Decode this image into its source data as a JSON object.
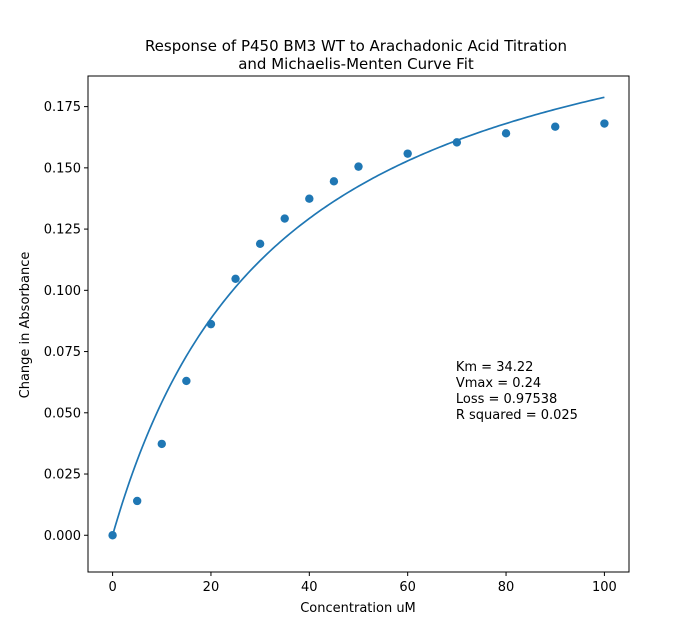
{
  "chart_data": {
    "type": "scatter",
    "title": "Response of P450 BM3 WT to Arachadonic Acid Titration",
    "subtitle": "and Michaelis-Menten Curve Fit",
    "xlabel": "Concentration uM",
    "ylabel": "Change in Absorbance",
    "xlim": [
      -5,
      105
    ],
    "ylim": [
      -0.015,
      0.1875
    ],
    "xticks": [
      0,
      20,
      40,
      60,
      80,
      100
    ],
    "xtick_labels": [
      "0",
      "20",
      "40",
      "60",
      "80",
      "100"
    ],
    "yticks": [
      0.0,
      0.025,
      0.05,
      0.075,
      0.1,
      0.125,
      0.15,
      0.175
    ],
    "ytick_labels": [
      "0.000",
      "0.025",
      "0.050",
      "0.075",
      "0.100",
      "0.125",
      "0.150",
      "0.175"
    ],
    "grid": false,
    "color": "#1f77b4",
    "series": [
      {
        "type": "scatter",
        "x": [
          0,
          5,
          10,
          15,
          20,
          25,
          30,
          35,
          40,
          45,
          50,
          60,
          70,
          80,
          90,
          100
        ],
        "y": [
          0.0,
          0.014,
          0.0373,
          0.063,
          0.0862,
          0.1047,
          0.119,
          0.1293,
          0.1374,
          0.1445,
          0.1505,
          0.1558,
          0.1604,
          0.1641,
          0.1668,
          0.1681
        ]
      },
      {
        "type": "line",
        "model": "michaelis-menten",
        "vmax": 0.24,
        "km": 34.22,
        "x_range": [
          0,
          100
        ]
      }
    ],
    "annotations": [
      "Km = 34.22",
      "Vmax = 0.24",
      "Loss = 0.97538",
      "R squared = 0.025"
    ],
    "annotation_position": "lower-right"
  }
}
